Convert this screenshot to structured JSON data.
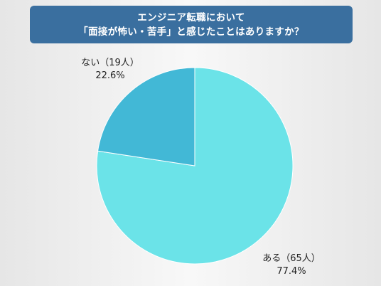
{
  "title": {
    "line1": "エンジニア転職において",
    "line2": "「面接が怖い・苦手」と感じたことはありますか？"
  },
  "chart_data": {
    "type": "pie",
    "title": "エンジニア転職において「面接が怖い・苦手」と感じたことはありますか？",
    "slices": [
      {
        "label": "ある（65人）",
        "count": 65,
        "percent": 77.4,
        "percent_label": "77.4%",
        "color": "#6be3e8"
      },
      {
        "label": "ない（19人）",
        "count": 19,
        "percent": 22.6,
        "percent_label": "22.6%",
        "color": "#42b8d6"
      }
    ]
  }
}
